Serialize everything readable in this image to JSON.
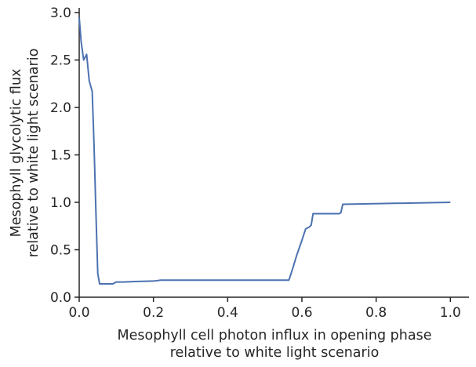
{
  "chart_data": {
    "type": "line",
    "title": "",
    "xlabel": [
      "Mesophyll cell photon influx in opening phase",
      "relative to white light scenario"
    ],
    "ylabel": [
      "Mesophyll glycolytic flux",
      "relative to white light scenario"
    ],
    "xlim": [
      0.0,
      1.05
    ],
    "ylim": [
      0.0,
      3.05
    ],
    "xticks": [
      "0.0",
      "0.2",
      "0.4",
      "0.6",
      "0.8",
      "1.0"
    ],
    "yticks": [
      "0.0",
      "0.5",
      "1.0",
      "1.5",
      "2.0",
      "2.5",
      "3.0"
    ],
    "grid": false,
    "legend": "none",
    "color": "#4c72b0",
    "series": [
      {
        "x": [
          0.0,
          0.005,
          0.012,
          0.02,
          0.027,
          0.035,
          0.04,
          0.045,
          0.05,
          0.055,
          0.06,
          0.065,
          0.07,
          0.08,
          0.09,
          0.1,
          0.12,
          0.15,
          0.2,
          0.22,
          0.3,
          0.4,
          0.5,
          0.565,
          0.575,
          0.585,
          0.6,
          0.61,
          0.62,
          0.625,
          0.63,
          0.7,
          0.705,
          0.71,
          1.0
        ],
        "y": [
          2.95,
          2.7,
          2.5,
          2.56,
          2.28,
          2.17,
          1.6,
          0.9,
          0.25,
          0.14,
          0.14,
          0.14,
          0.14,
          0.14,
          0.14,
          0.16,
          0.16,
          0.165,
          0.17,
          0.18,
          0.18,
          0.18,
          0.18,
          0.18,
          0.3,
          0.43,
          0.6,
          0.72,
          0.74,
          0.76,
          0.88,
          0.88,
          0.89,
          0.98,
          1.0
        ]
      }
    ]
  }
}
